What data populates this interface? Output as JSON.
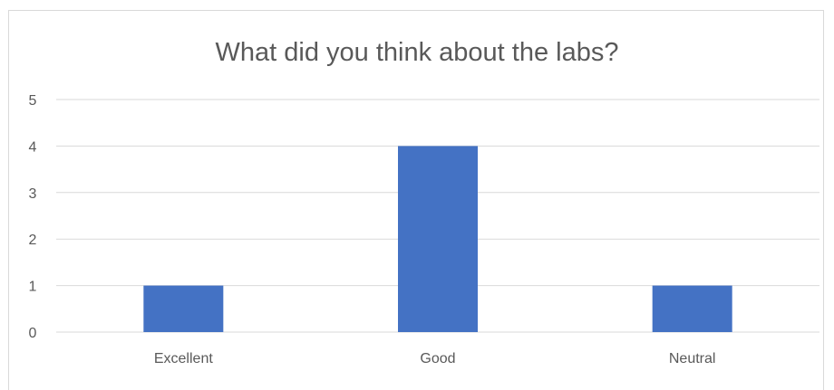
{
  "chart_data": {
    "type": "bar",
    "title": "What did you think about the labs?",
    "categories": [
      "Excellent",
      "Good",
      "Neutral"
    ],
    "values": [
      1,
      4,
      1
    ],
    "xlabel": "",
    "ylabel": "",
    "ylim": [
      0,
      5
    ],
    "yticks": [
      "0",
      "1",
      "2",
      "3",
      "4",
      "5"
    ],
    "grid": true,
    "legend": "none",
    "bar_color": "#4472C4",
    "grid_color": "#d9d9d9"
  }
}
